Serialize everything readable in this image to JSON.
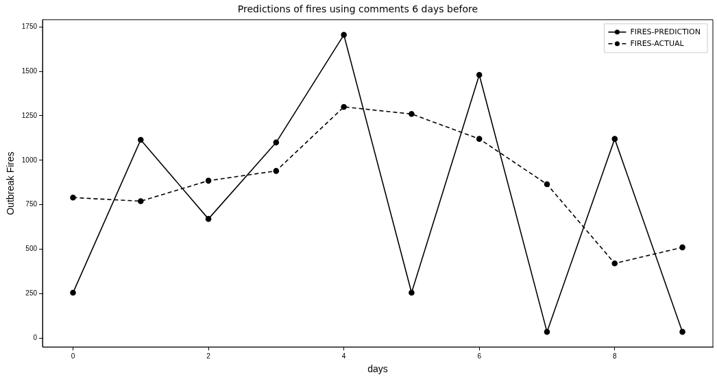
{
  "chart_data": {
    "type": "line",
    "title": "Predictions of fires using comments 6 days before",
    "xlabel": "days",
    "ylabel": "Outbreak Fires",
    "x": [
      0,
      1,
      2,
      3,
      4,
      5,
      6,
      7,
      8,
      9
    ],
    "series": [
      {
        "name": "FIRES-PREDICTION",
        "color": "#000000",
        "line_style": "solid",
        "values": [
          255,
          1115,
          670,
          1100,
          1705,
          255,
          1480,
          35,
          1120,
          35
        ]
      },
      {
        "name": "FIRES-ACTUAL",
        "color": "#000000",
        "line_style": "dashed",
        "values": [
          790,
          770,
          885,
          940,
          1300,
          1260,
          1120,
          865,
          420,
          510
        ]
      }
    ],
    "xlim": [
      -0.45,
      9.45
    ],
    "xticks": [
      0,
      2,
      4,
      6,
      8
    ],
    "ylim": [
      -50,
      1790
    ],
    "yticks": [
      0,
      250,
      500,
      750,
      1000,
      1250,
      1500,
      1750
    ],
    "grid": false,
    "legend": "top right",
    "marker": "circle"
  }
}
